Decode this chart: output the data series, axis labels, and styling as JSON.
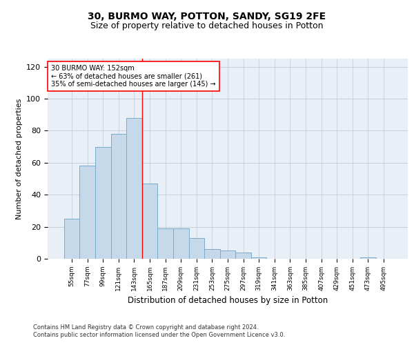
{
  "title1": "30, BURMO WAY, POTTON, SANDY, SG19 2FE",
  "title2": "Size of property relative to detached houses in Potton",
  "xlabel": "Distribution of detached houses by size in Potton",
  "ylabel": "Number of detached properties",
  "bar_labels": [
    "55sqm",
    "77sqm",
    "99sqm",
    "121sqm",
    "143sqm",
    "165sqm",
    "187sqm",
    "209sqm",
    "231sqm",
    "253sqm",
    "275sqm",
    "297sqm",
    "319sqm",
    "341sqm",
    "363sqm",
    "385sqm",
    "407sqm",
    "429sqm",
    "451sqm",
    "473sqm",
    "495sqm"
  ],
  "bar_values": [
    25,
    58,
    70,
    78,
    88,
    47,
    19,
    19,
    13,
    6,
    5,
    4,
    1,
    0,
    0,
    0,
    0,
    0,
    0,
    1,
    0
  ],
  "bar_color": "#c6d9ea",
  "bar_edge_color": "#7aaaca",
  "ylim": [
    0,
    125
  ],
  "yticks": [
    0,
    20,
    40,
    60,
    80,
    100,
    120
  ],
  "red_line_x": 4.5,
  "annotation_text": "30 BURMO WAY: 152sqm\n← 63% of detached houses are smaller (261)\n35% of semi-detached houses are larger (145) →",
  "footer1": "Contains HM Land Registry data © Crown copyright and database right 2024.",
  "footer2": "Contains public sector information licensed under the Open Government Licence v3.0.",
  "plot_bg_color": "#e8eff6",
  "grid_color": "#c0c8d4",
  "title1_fontsize": 10,
  "title2_fontsize": 9,
  "xlabel_fontsize": 8.5,
  "ylabel_fontsize": 8
}
